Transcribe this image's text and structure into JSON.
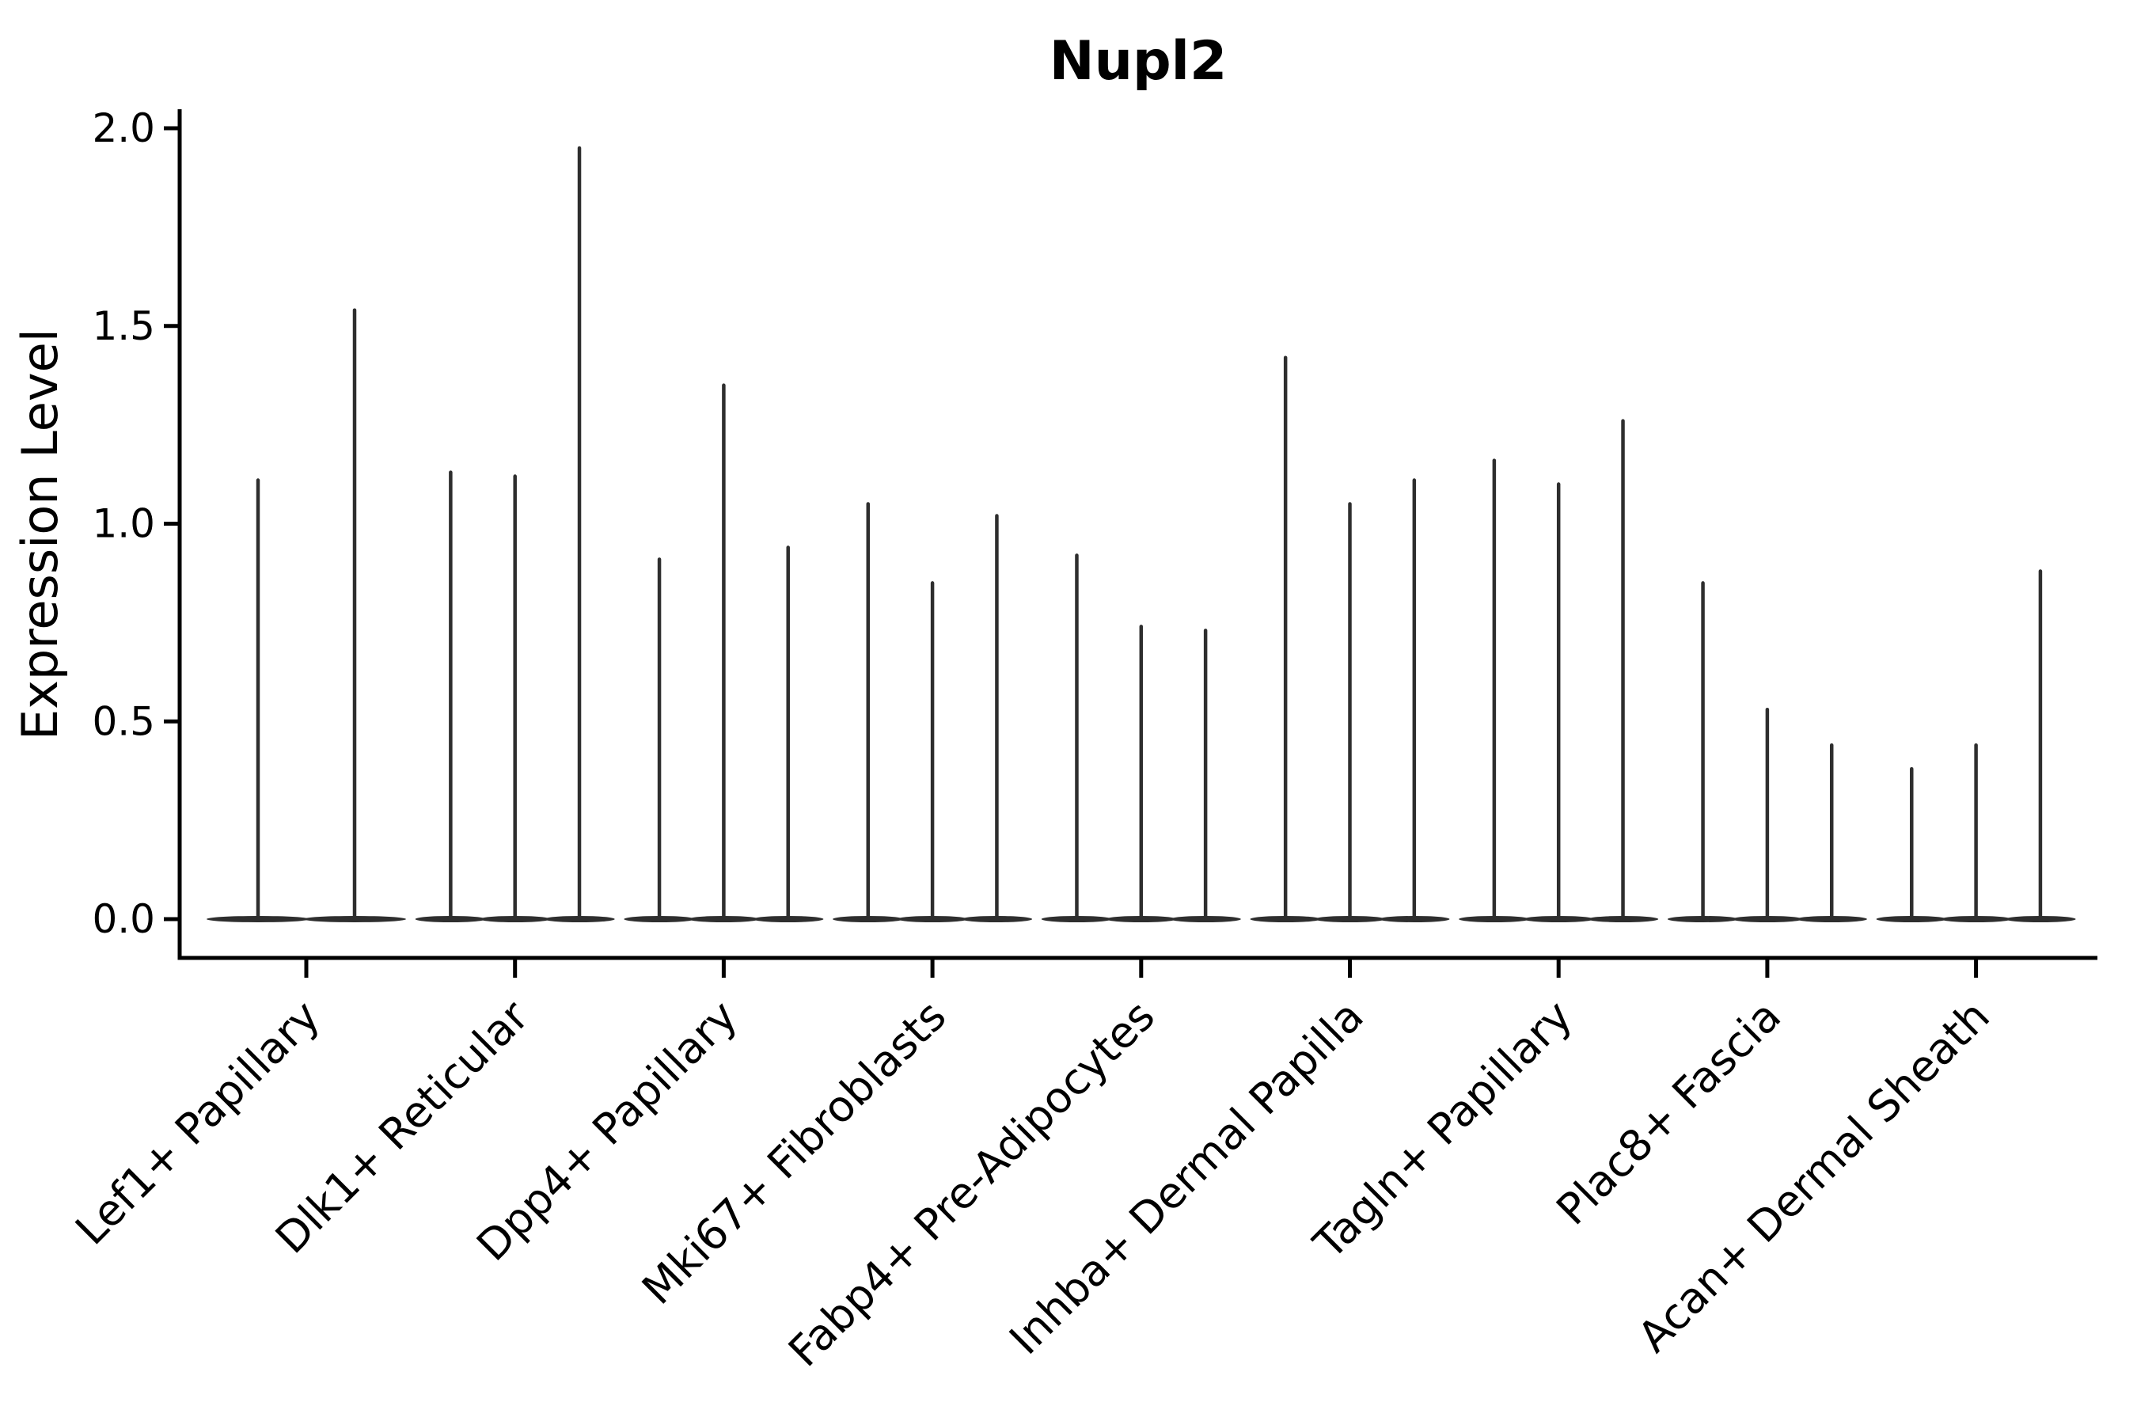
{
  "figure": {
    "title": "Nupl2"
  },
  "colors": {
    "violin": "#2e2e2e",
    "axis": "#000000",
    "text": "#000000",
    "background": "#ffffff"
  },
  "chart_data": {
    "type": "violin",
    "title": "Nupl2",
    "xlabel": "",
    "ylabel": "Expression Level",
    "ylim": [
      0,
      2.0
    ],
    "yticks": [
      0,
      0.5,
      1.0,
      1.5,
      2.0
    ],
    "ytick_labels": [
      "0.0",
      "0.5",
      "1.0",
      "1.5",
      "2.0"
    ],
    "grid": false,
    "legend": "none",
    "bulk_at_zero": true,
    "categories": [
      "Lef1+ Papillary",
      "Dlk1+ Reticular",
      "Dpp4+ Papillary",
      "Mki67+ Fibroblasts",
      "Fabp4+ Pre-Adipocytes",
      "Inhba+ Dermal Papilla",
      "Tagln+ Papillary",
      "Plac8+ Fascia",
      "Acan+ Dermal Sheath"
    ],
    "groups": [
      {
        "label": "Lef1+ Papillary",
        "violin_tail_maxima": [
          1.11,
          1.54
        ]
      },
      {
        "label": "Dlk1+ Reticular",
        "violin_tail_maxima": [
          1.13,
          1.12,
          1.95
        ]
      },
      {
        "label": "Dpp4+ Papillary",
        "violin_tail_maxima": [
          0.91,
          1.35,
          0.94
        ]
      },
      {
        "label": "Mki67+ Fibroblasts",
        "violin_tail_maxima": [
          1.05,
          0.85,
          1.02
        ]
      },
      {
        "label": "Fabp4+ Pre-Adipocytes",
        "violin_tail_maxima": [
          0.92,
          0.74,
          0.73
        ]
      },
      {
        "label": "Inhba+ Dermal Papilla",
        "violin_tail_maxima": [
          1.42,
          1.05,
          1.11
        ]
      },
      {
        "label": "Tagln+ Papillary",
        "violin_tail_maxima": [
          1.16,
          1.1,
          1.26
        ]
      },
      {
        "label": "Plac8+ Fascia",
        "violin_tail_maxima": [
          0.85,
          0.53,
          0.44
        ]
      },
      {
        "label": "Acan+ Dermal Sheath",
        "violin_tail_maxima": [
          0.38,
          0.44,
          0.88
        ]
      }
    ]
  }
}
